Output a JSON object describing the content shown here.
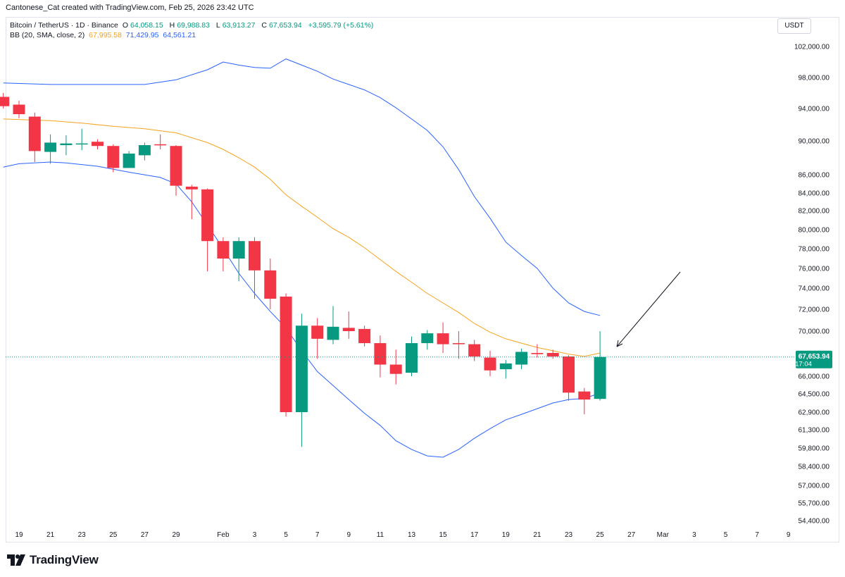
{
  "header": {
    "credit": "Cantonese_Cat created with TradingView.com, Feb 25, 2026 23:42 UTC",
    "symbol": "Bitcoin / TetherUS · 1D · Binance",
    "o_label": "O",
    "o_value": "64,058.15",
    "h_label": "H",
    "h_value": "69,988.83",
    "l_label": "L",
    "l_value": "63,913.27",
    "c_label": "C",
    "c_value": "67,653.94",
    "change": "+3,595.79 (+5.61%)",
    "indicator": "BB (20, SMA, close, 2)",
    "bb_basis": "67,995.58",
    "bb_upper": "71,429.95",
    "bb_lower": "64,561.21"
  },
  "currency": "USDT",
  "brand": "TradingView",
  "chart_data": {
    "type": "candlestick",
    "title": "Bitcoin / TetherUS · 1D · Binance",
    "price_axis_labels": [
      "102,000.00",
      "98,000.00",
      "94,000.00",
      "90,000.00",
      "86,000.00",
      "84,000.00",
      "82,000.00",
      "80,000.00",
      "78,000.00",
      "76,000.00",
      "74,000.00",
      "72,000.00",
      "70,000.00",
      "66,000.00",
      "64,500.00",
      "62,900.00",
      "61,300.00",
      "59,800.00",
      "58,400.00",
      "57,000.00",
      "55,700.00",
      "54,400.00"
    ],
    "price_axis_values": [
      102000,
      98000,
      94000,
      90000,
      86000,
      84000,
      82000,
      80000,
      78000,
      76000,
      74000,
      72000,
      70000,
      66000,
      64500,
      62900,
      61300,
      59800,
      58400,
      57000,
      55700,
      54400
    ],
    "last_price": {
      "label": "67,653.94",
      "countdown": "17:04",
      "value": 67653.94
    },
    "x_axis_labels": [
      {
        "day": 19,
        "text": "19"
      },
      {
        "day": 21,
        "text": "21"
      },
      {
        "day": 23,
        "text": "23"
      },
      {
        "day": 25,
        "text": "25"
      },
      {
        "day": 27,
        "text": "27"
      },
      {
        "day": 29,
        "text": "29"
      },
      {
        "day": 32,
        "text": "Feb"
      },
      {
        "day": 34,
        "text": "3"
      },
      {
        "day": 36,
        "text": "5"
      },
      {
        "day": 38,
        "text": "7"
      },
      {
        "day": 40,
        "text": "9"
      },
      {
        "day": 42,
        "text": "11"
      },
      {
        "day": 44,
        "text": "13"
      },
      {
        "day": 46,
        "text": "15"
      },
      {
        "day": 48,
        "text": "17"
      },
      {
        "day": 50,
        "text": "19"
      },
      {
        "day": 52,
        "text": "21"
      },
      {
        "day": 54,
        "text": "23"
      },
      {
        "day": 56,
        "text": "25"
      },
      {
        "day": 58,
        "text": "27"
      },
      {
        "day": 60,
        "text": "Mar"
      },
      {
        "day": 62,
        "text": "3"
      },
      {
        "day": 64,
        "text": "5"
      },
      {
        "day": 66,
        "text": "7"
      },
      {
        "day": 68,
        "text": "9"
      }
    ],
    "candles": [
      {
        "d": 18,
        "o": 95500,
        "h": 96000,
        "l": 94000,
        "c": 94300
      },
      {
        "d": 19,
        "o": 94500,
        "h": 95000,
        "l": 92800,
        "c": 93300
      },
      {
        "d": 20,
        "o": 93000,
        "h": 93500,
        "l": 87500,
        "c": 88800
      },
      {
        "d": 21,
        "o": 88700,
        "h": 90800,
        "l": 87300,
        "c": 89800
      },
      {
        "d": 22,
        "o": 89500,
        "h": 90700,
        "l": 88300,
        "c": 89700
      },
      {
        "d": 23,
        "o": 89600,
        "h": 91500,
        "l": 88900,
        "c": 89700
      },
      {
        "d": 24,
        "o": 89900,
        "h": 90200,
        "l": 89000,
        "c": 89400
      },
      {
        "d": 25,
        "o": 89400,
        "h": 89600,
        "l": 86300,
        "c": 86800
      },
      {
        "d": 26,
        "o": 86800,
        "h": 88800,
        "l": 86800,
        "c": 88500
      },
      {
        "d": 27,
        "o": 88300,
        "h": 89800,
        "l": 87700,
        "c": 89500
      },
      {
        "d": 28,
        "o": 89600,
        "h": 90800,
        "l": 89000,
        "c": 89500
      },
      {
        "d": 29,
        "o": 89400,
        "h": 89500,
        "l": 83700,
        "c": 84800
      },
      {
        "d": 30,
        "o": 84700,
        "h": 84900,
        "l": 81100,
        "c": 84400
      },
      {
        "d": 31,
        "o": 84400,
        "h": 84500,
        "l": 75700,
        "c": 78800
      },
      {
        "d": 32,
        "o": 78800,
        "h": 79200,
        "l": 75700,
        "c": 77000
      },
      {
        "d": 33,
        "o": 77000,
        "h": 79200,
        "l": 74700,
        "c": 78800
      },
      {
        "d": 34,
        "o": 78800,
        "h": 79200,
        "l": 73000,
        "c": 75800
      },
      {
        "d": 35,
        "o": 75800,
        "h": 77000,
        "l": 72000,
        "c": 73000
      },
      {
        "d": 36,
        "o": 73200,
        "h": 73500,
        "l": 62500,
        "c": 62900
      },
      {
        "d": 37,
        "o": 62900,
        "h": 71600,
        "l": 59900,
        "c": 70500
      },
      {
        "d": 38,
        "o": 70500,
        "h": 71200,
        "l": 67500,
        "c": 69300
      },
      {
        "d": 39,
        "o": 69200,
        "h": 72300,
        "l": 68800,
        "c": 70400
      },
      {
        "d": 40,
        "o": 70300,
        "h": 71800,
        "l": 69300,
        "c": 70000
      },
      {
        "d": 41,
        "o": 70200,
        "h": 70500,
        "l": 68600,
        "c": 68900
      },
      {
        "d": 42,
        "o": 68900,
        "h": 69600,
        "l": 65900,
        "c": 67000
      },
      {
        "d": 43,
        "o": 67000,
        "h": 68300,
        "l": 65300,
        "c": 66200
      },
      {
        "d": 44,
        "o": 66300,
        "h": 69500,
        "l": 66000,
        "c": 68900
      },
      {
        "d": 45,
        "o": 68900,
        "h": 70100,
        "l": 68300,
        "c": 69800
      },
      {
        "d": 46,
        "o": 69800,
        "h": 70800,
        "l": 68000,
        "c": 68800
      },
      {
        "d": 47,
        "o": 68900,
        "h": 70000,
        "l": 67500,
        "c": 68800
      },
      {
        "d": 48,
        "o": 68800,
        "h": 69200,
        "l": 67300,
        "c": 67700
      },
      {
        "d": 49,
        "o": 67600,
        "h": 68200,
        "l": 66000,
        "c": 66500
      },
      {
        "d": 50,
        "o": 66600,
        "h": 67400,
        "l": 65800,
        "c": 67100
      },
      {
        "d": 51,
        "o": 67000,
        "h": 68400,
        "l": 66600,
        "c": 68100
      },
      {
        "d": 52,
        "o": 68000,
        "h": 68800,
        "l": 67600,
        "c": 67900
      },
      {
        "d": 53,
        "o": 68000,
        "h": 68300,
        "l": 67500,
        "c": 67700
      },
      {
        "d": 54,
        "o": 67700,
        "h": 67800,
        "l": 63900,
        "c": 64600
      },
      {
        "d": 55,
        "o": 64700,
        "h": 65000,
        "l": 62700,
        "c": 64000
      },
      {
        "d": 56,
        "o": 64058.15,
        "h": 69988.83,
        "l": 63913.27,
        "c": 67653.94
      }
    ],
    "bb_upper": [
      [
        18,
        97300
      ],
      [
        21,
        97100
      ],
      [
        24,
        97100
      ],
      [
        27,
        97100
      ],
      [
        29,
        97700
      ],
      [
        31,
        99000
      ],
      [
        32,
        100000
      ],
      [
        33,
        99600
      ],
      [
        34,
        99300
      ],
      [
        35,
        99200
      ],
      [
        36,
        100400
      ],
      [
        37,
        99600
      ],
      [
        38,
        98800
      ],
      [
        39,
        97800
      ],
      [
        40,
        97100
      ],
      [
        41,
        96400
      ],
      [
        42,
        95400
      ],
      [
        43,
        94100
      ],
      [
        44,
        92700
      ],
      [
        45,
        91300
      ],
      [
        46,
        89300
      ],
      [
        47,
        86600
      ],
      [
        48,
        83600
      ],
      [
        49,
        81200
      ],
      [
        50,
        78700
      ],
      [
        51,
        77300
      ],
      [
        52,
        76000
      ],
      [
        53,
        74000
      ],
      [
        54,
        72600
      ],
      [
        55,
        71800
      ],
      [
        56,
        71429.95
      ]
    ],
    "bb_basis": [
      [
        18,
        92700
      ],
      [
        21,
        92500
      ],
      [
        23,
        92200
      ],
      [
        25,
        91800
      ],
      [
        27,
        91500
      ],
      [
        29,
        91000
      ],
      [
        31,
        89800
      ],
      [
        32,
        89000
      ],
      [
        33,
        88000
      ],
      [
        34,
        86900
      ],
      [
        35,
        85500
      ],
      [
        36,
        83800
      ],
      [
        37,
        82500
      ],
      [
        38,
        81300
      ],
      [
        39,
        80100
      ],
      [
        40,
        79200
      ],
      [
        41,
        78100
      ],
      [
        42,
        76900
      ],
      [
        43,
        75700
      ],
      [
        44,
        74600
      ],
      [
        45,
        73500
      ],
      [
        46,
        72600
      ],
      [
        47,
        71700
      ],
      [
        48,
        70700
      ],
      [
        49,
        69900
      ],
      [
        50,
        69300
      ],
      [
        51,
        68900
      ],
      [
        52,
        68500
      ],
      [
        53,
        68200
      ],
      [
        54,
        67900
      ],
      [
        55,
        67700
      ],
      [
        56,
        67995.58
      ]
    ],
    "bb_lower": [
      [
        18,
        86900
      ],
      [
        19,
        87300
      ],
      [
        21,
        87500
      ],
      [
        22,
        87400
      ],
      [
        24,
        87000
      ],
      [
        26,
        86300
      ],
      [
        28,
        85700
      ],
      [
        29,
        85000
      ],
      [
        30,
        83000
      ],
      [
        31,
        80500
      ],
      [
        32,
        78000
      ],
      [
        33,
        75500
      ],
      [
        34,
        73500
      ],
      [
        35,
        71800
      ],
      [
        36,
        70300
      ],
      [
        37,
        68200
      ],
      [
        38,
        66400
      ],
      [
        39,
        65200
      ],
      [
        40,
        64000
      ],
      [
        41,
        62800
      ],
      [
        42,
        61700
      ],
      [
        43,
        60400
      ],
      [
        44,
        59700
      ],
      [
        45,
        59200
      ],
      [
        46,
        59100
      ],
      [
        47,
        59700
      ],
      [
        48,
        60600
      ],
      [
        49,
        61400
      ],
      [
        50,
        62200
      ],
      [
        51,
        62700
      ],
      [
        52,
        63200
      ],
      [
        53,
        63700
      ],
      [
        54,
        64000
      ],
      [
        55,
        64100
      ],
      [
        56,
        64561.21
      ]
    ],
    "colors": {
      "up": "#089981",
      "down": "#f23645",
      "bb_bands": "#2962ff",
      "bb_basis": "#f7a21b",
      "last_line": "#089981"
    }
  }
}
